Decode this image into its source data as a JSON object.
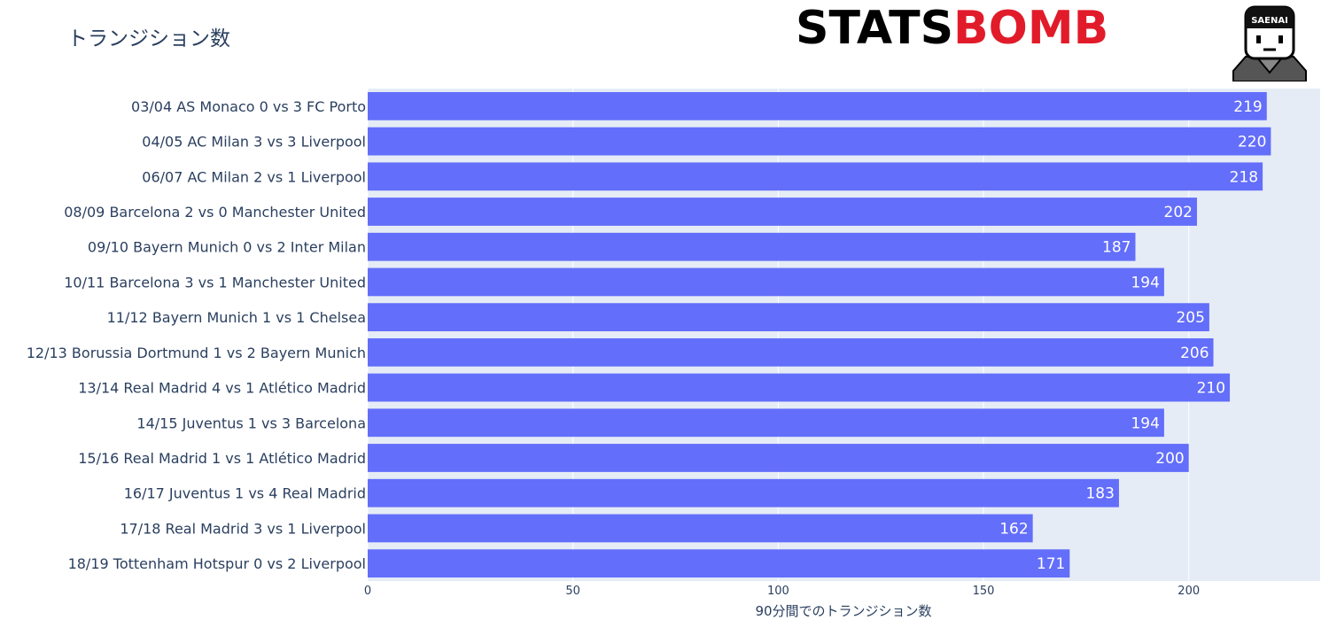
{
  "chart_data": {
    "type": "bar",
    "orientation": "horizontal",
    "title": "トランジション数",
    "xlabel": "90分間でのトランジション数",
    "ylabel": "",
    "xlim": [
      0,
      232
    ],
    "xticks": [
      0,
      50,
      100,
      150,
      200
    ],
    "grid": true,
    "bar_color": "#636efa",
    "plot_bg": "#e5ecf6",
    "categories": [
      "03/04 AS Monaco 0 vs 3 FC Porto",
      "04/05 AC Milan 3 vs 3 Liverpool",
      "06/07 AC Milan 2 vs 1 Liverpool",
      "08/09 Barcelona 2 vs 0 Manchester United",
      "09/10 Bayern Munich 0 vs 2 Inter Milan",
      "10/11 Barcelona 3 vs 1 Manchester United",
      "11/12 Bayern Munich 1 vs 1 Chelsea",
      "12/13 Borussia Dortmund 1 vs 2 Bayern Munich",
      "13/14 Real Madrid 4 vs 1 Atlético Madrid",
      "14/15 Juventus 1 vs 3 Barcelona",
      "15/16 Real Madrid 1 vs 1 Atlético Madrid",
      "16/17 Juventus 1 vs 4 Real Madrid",
      "17/18 Real Madrid 3 vs 1 Liverpool",
      "18/19 Tottenham Hotspur 0 vs 2 Liverpool"
    ],
    "values": [
      219,
      220,
      218,
      202,
      187,
      194,
      205,
      206,
      210,
      194,
      200,
      183,
      162,
      171
    ]
  },
  "logos": {
    "statsbomb_part1": "STATS",
    "statsbomb_part2": "BOMB",
    "saenai": "SAENAI"
  }
}
